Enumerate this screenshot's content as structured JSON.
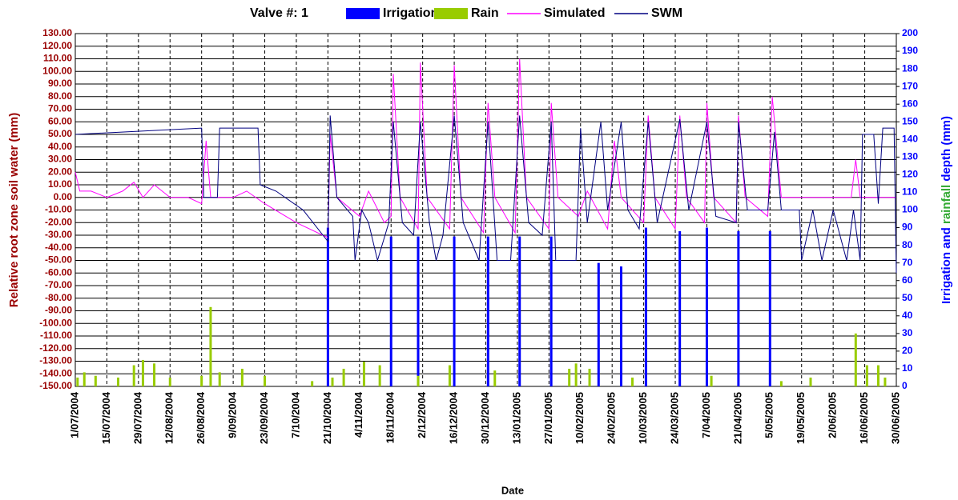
{
  "chart_data": {
    "type": "combo",
    "title": "Valve #: 1",
    "xlabel": "Date",
    "ylabel": "Relative root zone soil water  (mm)",
    "ylabel_color": "#990000",
    "y2label_parts": [
      {
        "text": "Irrigation and ",
        "color": "#0000ff"
      },
      {
        "text": "rainfall",
        "color": "#33aa33"
      },
      {
        "text": " depth (mm)",
        "color": "#0000ff"
      }
    ],
    "grid": true,
    "xlim": [
      "1/07/2004",
      "30/06/2005"
    ],
    "xticks": [
      "1/07/2004",
      "15/07/2004",
      "29/07/2004",
      "12/08/2004",
      "26/08/2004",
      "9/09/2004",
      "23/09/2004",
      "7/10/2004",
      "21/10/2004",
      "4/11/2004",
      "18/11/2004",
      "2/12/2004",
      "16/12/2004",
      "30/12/2004",
      "13/01/2005",
      "27/01/2005",
      "10/02/2005",
      "24/02/2005",
      "10/03/2005",
      "24/03/2005",
      "7/04/2005",
      "21/04/2005",
      "5/05/2005",
      "19/05/2005",
      "2/06/2005",
      "16/06/2005",
      "30/06/2005"
    ],
    "ylim": [
      -150,
      130
    ],
    "yticks": [
      {
        "value": 130,
        "label": "130.00"
      },
      {
        "value": 120,
        "label": "120.00"
      },
      {
        "value": 110,
        "label": "110.00"
      },
      {
        "value": 100,
        "label": "100.00"
      },
      {
        "value": 90,
        "label": "90.00"
      },
      {
        "value": 80,
        "label": "80.00"
      },
      {
        "value": 70,
        "label": "70.00"
      },
      {
        "value": 60,
        "label": "60.00"
      },
      {
        "value": 50,
        "label": "50.00"
      },
      {
        "value": 40,
        "label": "40.00"
      },
      {
        "value": 30,
        "label": "30.00"
      },
      {
        "value": 20,
        "label": "20.00"
      },
      {
        "value": 10,
        "label": "10.00"
      },
      {
        "value": 0,
        "label": "0.00"
      },
      {
        "value": -10,
        "label": "-10.00"
      },
      {
        "value": -20,
        "label": "-20.00"
      },
      {
        "value": -30,
        "label": "-30.00"
      },
      {
        "value": -40,
        "label": "-40.00"
      },
      {
        "value": -50,
        "label": "-50.00"
      },
      {
        "value": -60,
        "label": "-60.00"
      },
      {
        "value": -70,
        "label": "-70.00"
      },
      {
        "value": -80,
        "label": "-80.00"
      },
      {
        "value": -90,
        "label": "-90.00"
      },
      {
        "value": -100,
        "label": "-100.00"
      },
      {
        "value": -110,
        "label": "-110.00"
      },
      {
        "value": -120,
        "label": "-120.00"
      },
      {
        "value": -130,
        "label": "-130.00"
      },
      {
        "value": -140,
        "label": "-140.00"
      },
      {
        "value": -150,
        "label": "-150.00"
      }
    ],
    "y2lim": [
      0,
      200
    ],
    "y2ticks": [
      0,
      10,
      20,
      30,
      40,
      50,
      60,
      70,
      80,
      90,
      100,
      110,
      120,
      130,
      140,
      150,
      160,
      170,
      180,
      190,
      200
    ],
    "y2tick_color": "#0000ff",
    "series": [
      {
        "name": "Irrigation",
        "type": "bar",
        "axis": "y2",
        "color": "#0000ff",
        "x": [
          "21/10/2004",
          "18/11/2004",
          "30/11/2004",
          "16/12/2004",
          "31/12/2004",
          "14/01/2005",
          "28/01/2005",
          "18/02/2005",
          "28/02/2005",
          "11/03/2005",
          "26/03/2005",
          "7/04/2005",
          "21/04/2005",
          "5/05/2005"
        ],
        "values": [
          90,
          85,
          85,
          85,
          85,
          85,
          85,
          70,
          68,
          90,
          88,
          90,
          88,
          88
        ]
      },
      {
        "name": "Rain",
        "type": "bar",
        "axis": "y2",
        "color": "#99cc00",
        "x": [
          "2/07/2004",
          "5/07/2004",
          "10/07/2004",
          "20/07/2004",
          "27/07/2004",
          "31/07/2004",
          "5/08/2004",
          "12/08/2004",
          "26/08/2004",
          "30/08/2004",
          "3/09/2004",
          "13/09/2004",
          "23/09/2004",
          "14/10/2004",
          "23/10/2004",
          "28/10/2004",
          "6/11/2004",
          "13/11/2004",
          "30/11/2004",
          "14/12/2004",
          "3/01/2005",
          "5/02/2005",
          "8/02/2005",
          "14/02/2005",
          "5/03/2005",
          "9/04/2005",
          "10/05/2005",
          "23/05/2005",
          "12/06/2005",
          "17/06/2005",
          "22/06/2005",
          "25/06/2005"
        ],
        "values": [
          5,
          8,
          6,
          5,
          12,
          15,
          13,
          5,
          6,
          45,
          8,
          10,
          6,
          3,
          5,
          10,
          14,
          12,
          6,
          12,
          9,
          10,
          13,
          10,
          5,
          6,
          3,
          5,
          30,
          12,
          12,
          5
        ]
      },
      {
        "name": "Simulated",
        "type": "line",
        "axis": "y",
        "color": "#ff00ff",
        "x": [
          "1/07/2004",
          "3/07/2004",
          "8/07/2004",
          "15/07/2004",
          "22/07/2004",
          "27/07/2004",
          "31/07/2004",
          "5/08/2004",
          "12/08/2004",
          "20/08/2004",
          "26/08/2004",
          "28/08/2004",
          "30/08/2004",
          "9/09/2004",
          "15/09/2004",
          "23/09/2004",
          "7/10/2004",
          "21/10/2004",
          "22/10/2004",
          "25/10/2004",
          "4/11/2004",
          "8/11/2004",
          "15/11/2004",
          "18/11/2004",
          "19/11/2004",
          "22/11/2004",
          "30/11/2004",
          "1/12/2004",
          "4/12/2004",
          "14/12/2004",
          "16/12/2004",
          "19/12/2004",
          "29/12/2004",
          "31/12/2004",
          "3/01/2005",
          "12/01/2005",
          "14/01/2005",
          "17/01/2005",
          "27/01/2005",
          "28/01/2005",
          "31/01/2005",
          "9/02/2005",
          "13/02/2005",
          "22/02/2005",
          "25/02/2005",
          "28/02/2005",
          "10/03/2005",
          "12/03/2005",
          "15/03/2005",
          "24/03/2005",
          "26/03/2005",
          "29/03/2005",
          "6/04/2005",
          "7/04/2005",
          "10/04/2005",
          "20/04/2005",
          "21/04/2005",
          "24/04/2005",
          "4/05/2005",
          "6/05/2005",
          "10/05/2005",
          "10/06/2005",
          "12/06/2005",
          "14/06/2005",
          "30/06/2005"
        ],
        "values": [
          20,
          5,
          5,
          0,
          5,
          12,
          0,
          10,
          0,
          0,
          -5,
          45,
          0,
          0,
          5,
          -5,
          -20,
          -32,
          50,
          0,
          -15,
          5,
          -20,
          -15,
          98,
          0,
          -25,
          107,
          0,
          -25,
          105,
          0,
          -28,
          75,
          0,
          -28,
          110,
          0,
          -25,
          75,
          0,
          -15,
          5,
          -25,
          45,
          0,
          -20,
          65,
          0,
          -25,
          65,
          0,
          -20,
          75,
          0,
          -20,
          65,
          0,
          -15,
          80,
          0,
          0,
          30,
          0,
          0
        ]
      },
      {
        "name": "SWM",
        "type": "line",
        "axis": "y",
        "color": "#000080",
        "x": [
          "1/07/2004",
          "26/08/2004",
          "27/08/2004",
          "2/09/2004",
          "3/09/2004",
          "20/09/2004",
          "21/09/2004",
          "28/09/2004",
          "10/10/2004",
          "21/10/2004",
          "22/10/2004",
          "25/10/2004",
          "1/11/2004",
          "2/11/2004",
          "5/11/2004",
          "8/11/2004",
          "12/11/2004",
          "17/11/2004",
          "19/11/2004",
          "23/11/2004",
          "28/11/2004",
          "1/12/2004",
          "5/12/2004",
          "8/12/2004",
          "11/12/2004",
          "16/12/2004",
          "20/12/2004",
          "27/12/2004",
          "31/12/2004",
          "4/01/2005",
          "10/01/2005",
          "14/01/2005",
          "18/01/2005",
          "24/01/2005",
          "28/01/2005",
          "30/01/2005",
          "8/02/2005",
          "10/02/2005",
          "13/02/2005",
          "19/02/2005",
          "22/02/2005",
          "28/02/2005",
          "3/03/2005",
          "8/03/2005",
          "12/03/2005",
          "16/03/2005",
          "26/03/2005",
          "30/03/2005",
          "7/04/2005",
          "11/04/2005",
          "20/04/2005",
          "21/04/2005",
          "25/04/2005",
          "4/05/2005",
          "7/05/2005",
          "10/05/2005",
          "18/05/2005",
          "19/05/2005",
          "24/05/2005",
          "28/05/2005",
          "2/06/2005",
          "8/06/2005",
          "11/06/2005",
          "14/06/2005",
          "15/06/2005",
          "20/06/2005",
          "22/06/2005",
          "24/06/2005",
          "29/06/2005",
          "30/06/2005"
        ],
        "values": [
          50,
          55,
          0,
          0,
          55,
          55,
          10,
          5,
          -10,
          -35,
          65,
          0,
          -15,
          -50,
          -10,
          -20,
          -50,
          -20,
          60,
          -20,
          -30,
          60,
          -20,
          -50,
          -30,
          65,
          -20,
          -50,
          60,
          -50,
          -50,
          65,
          -20,
          -30,
          60,
          -50,
          -50,
          55,
          -20,
          60,
          -10,
          60,
          -10,
          -25,
          60,
          -20,
          62,
          -10,
          60,
          -15,
          -20,
          60,
          -10,
          -10,
          52,
          -10,
          -10,
          -50,
          -10,
          -50,
          -10,
          -50,
          -10,
          -50,
          50,
          50,
          -5,
          55,
          55,
          -60
        ]
      }
    ]
  }
}
